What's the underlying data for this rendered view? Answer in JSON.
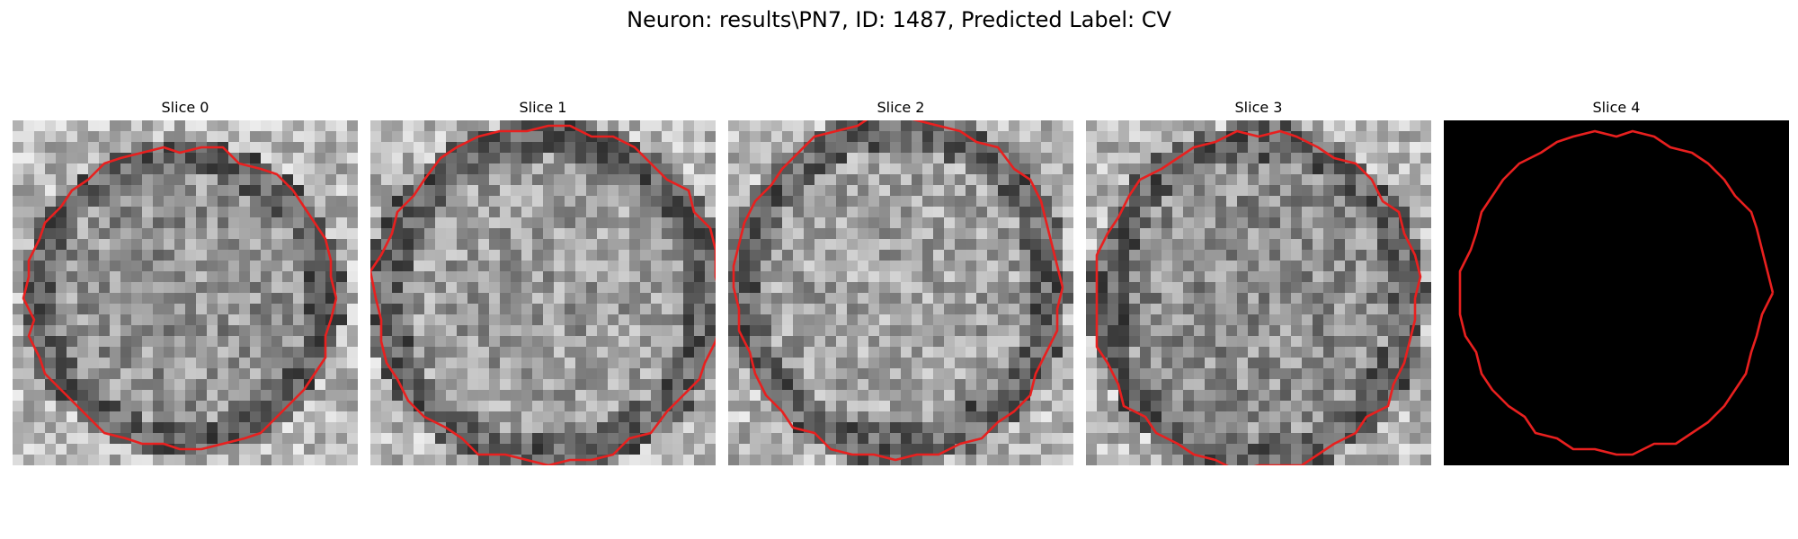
{
  "figure": {
    "title": "Neuron: results\\PN7, ID: 1487, Predicted Label: CV"
  },
  "panels": [
    {
      "title": "Slice 0",
      "mode": "texture",
      "seed": 11,
      "brightness": 0.58,
      "contour_color": "#e8201f"
    },
    {
      "title": "Slice 1",
      "mode": "texture",
      "seed": 23,
      "brightness": 0.62,
      "contour_color": "#e8201f"
    },
    {
      "title": "Slice 2",
      "mode": "texture",
      "seed": 37,
      "brightness": 0.64,
      "contour_color": "#e8201f"
    },
    {
      "title": "Slice 3",
      "mode": "texture",
      "seed": 41,
      "brightness": 0.56,
      "contour_color": "#e8201f"
    },
    {
      "title": "Slice 4",
      "mode": "black",
      "seed": 0,
      "brightness": 0,
      "contour_color": "#e8201f"
    }
  ]
}
